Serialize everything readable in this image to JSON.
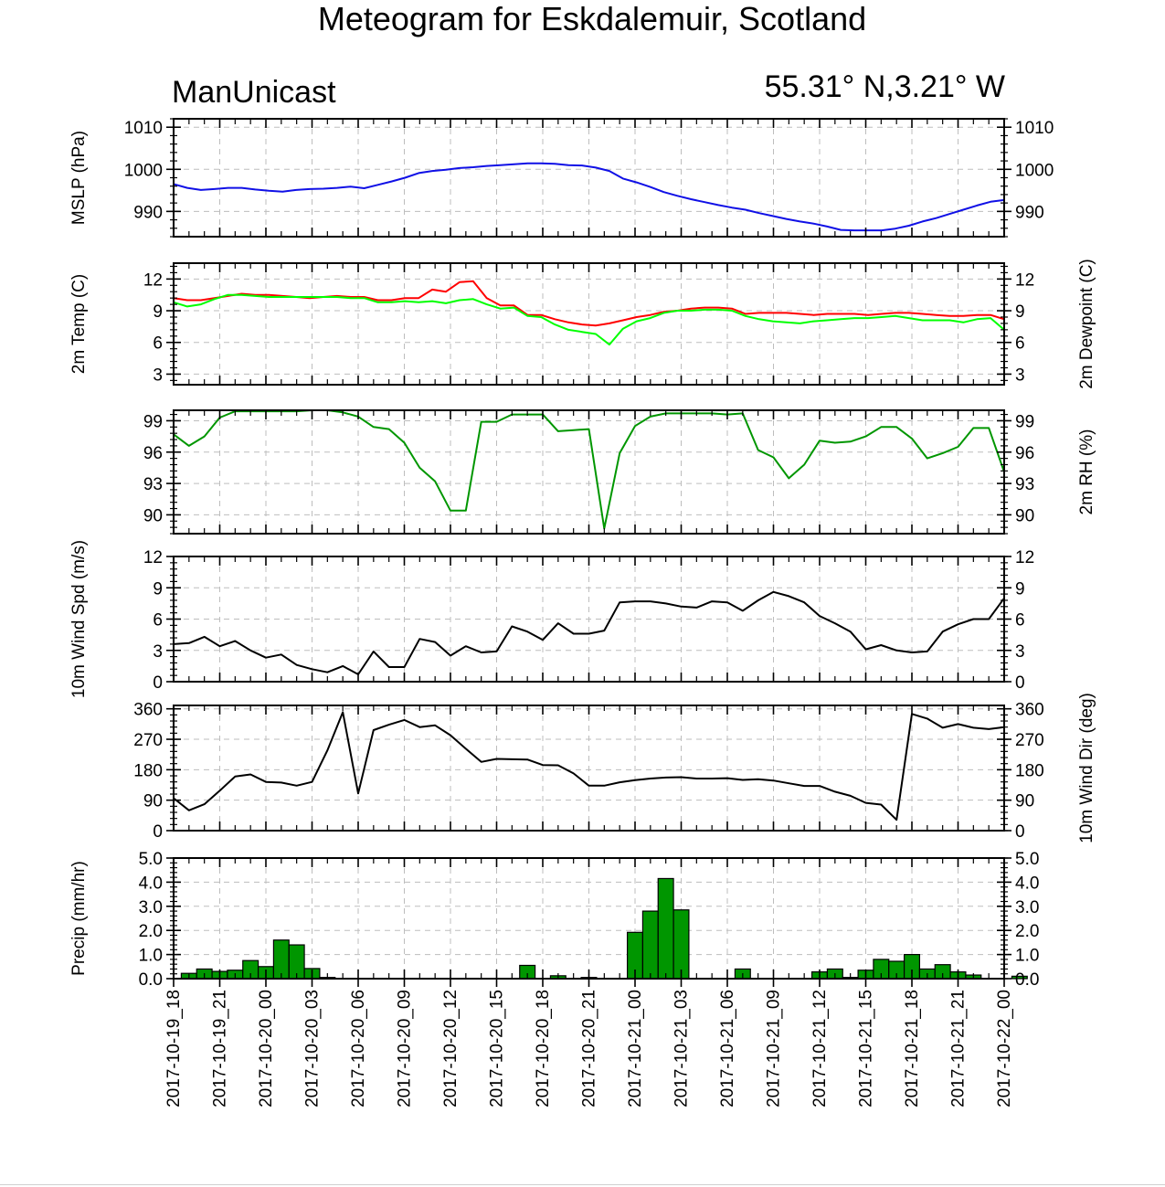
{
  "title": "Meteogram for Eskdalemuir, Scotland",
  "model_label": "ManUnicast",
  "location_label": "55.31° N,3.21° W",
  "chart_data": [
    {
      "type": "line",
      "ylabel": "MSLP (hPa)",
      "ylabel_right": "",
      "ylim": [
        984,
        1012
      ],
      "yticks": [
        990,
        1000,
        1010
      ],
      "yticklabels": [
        "990",
        "1000",
        "1010"
      ],
      "series": [
        {
          "color": "#1010e6",
          "values": [
            996.5,
            995.6,
            995.1,
            995.3,
            995.6,
            995.6,
            995.2,
            994.9,
            994.7,
            995.1,
            995.3,
            995.4,
            995.6,
            995.9,
            995.5,
            996.3,
            997.1,
            998.0,
            999.1,
            999.6,
            999.9,
            1000.3,
            1000.5,
            1000.8,
            1001.0,
            1001.2,
            1001.4,
            1001.4,
            1001.3,
            1001.0,
            1000.9,
            1000.4,
            999.6,
            997.8,
            996.9,
            995.8,
            994.6,
            993.7,
            992.9,
            992.2,
            991.5,
            990.9,
            990.4,
            989.6,
            988.9,
            988.2,
            987.6,
            987.1,
            986.4,
            985.6,
            985.5,
            985.5,
            985.5,
            985.9,
            986.6,
            987.6,
            988.4,
            989.4,
            990.4,
            991.4,
            992.3,
            992.7
          ]
        }
      ]
    },
    {
      "type": "line",
      "ylabel": "2m Temp (C)",
      "ylabel_right": "2m Dewpoint (C)",
      "ylim": [
        2,
        13.5
      ],
      "yticks": [
        3,
        6,
        9,
        12
      ],
      "yticklabels": [
        "3",
        "6",
        "9",
        "12"
      ],
      "series": [
        {
          "color": "#ff0000",
          "values": [
            10.2,
            10.0,
            10.0,
            10.2,
            10.4,
            10.6,
            10.5,
            10.5,
            10.4,
            10.3,
            10.2,
            10.3,
            10.4,
            10.3,
            10.3,
            10.0,
            10.0,
            10.2,
            10.2,
            11.0,
            10.8,
            11.7,
            11.8,
            10.2,
            9.5,
            9.5,
            8.6,
            8.6,
            8.2,
            7.9,
            7.7,
            7.6,
            7.8,
            8.1,
            8.4,
            8.6,
            8.9,
            9.0,
            9.2,
            9.3,
            9.3,
            9.2,
            8.7,
            8.8,
            8.8,
            8.8,
            8.7,
            8.6,
            8.7,
            8.7,
            8.7,
            8.6,
            8.7,
            8.8,
            8.8,
            8.7,
            8.6,
            8.5,
            8.5,
            8.6,
            8.6,
            8.2
          ]
        },
        {
          "color": "#00ff00",
          "values": [
            9.8,
            9.4,
            9.6,
            10.1,
            10.5,
            10.5,
            10.4,
            10.3,
            10.3,
            10.3,
            10.3,
            10.3,
            10.3,
            10.2,
            10.2,
            9.8,
            9.8,
            9.9,
            9.8,
            9.9,
            9.7,
            10.0,
            10.1,
            9.6,
            9.2,
            9.3,
            8.5,
            8.4,
            7.7,
            7.2,
            7.0,
            6.8,
            5.8,
            7.3,
            8.0,
            8.3,
            8.8,
            9.0,
            9.0,
            9.1,
            9.1,
            9.0,
            8.5,
            8.2,
            8.0,
            7.9,
            7.8,
            8.0,
            8.1,
            8.2,
            8.3,
            8.3,
            8.4,
            8.5,
            8.3,
            8.1,
            8.1,
            8.1,
            7.9,
            8.2,
            8.3,
            7.2
          ]
        }
      ]
    },
    {
      "type": "line",
      "ylabel": "",
      "ylabel_right": "2m RH (%)",
      "ylim": [
        88.2,
        100
      ],
      "yticks": [
        90,
        93,
        96,
        99
      ],
      "yticklabels": [
        "90",
        "93",
        "96",
        "99"
      ],
      "series": [
        {
          "color": "#009600",
          "values": [
            97.7,
            96.6,
            97.5,
            99.3,
            99.9,
            99.9,
            99.9,
            99.9,
            99.9,
            100.0,
            100.0,
            99.8,
            99.4,
            98.4,
            98.2,
            96.9,
            94.5,
            93.2,
            90.4,
            90.4,
            98.9,
            98.9,
            99.6,
            99.6,
            99.6,
            98.0,
            98.1,
            98.2,
            88.7,
            95.9,
            98.5,
            99.4,
            99.7,
            99.7,
            99.7,
            99.7,
            99.6,
            99.7,
            96.2,
            95.5,
            93.5,
            94.8,
            97.1,
            96.9,
            97.0,
            97.5,
            98.4,
            98.4,
            97.3,
            95.4,
            95.9,
            96.5,
            98.3,
            98.3,
            94.1
          ]
        }
      ]
    },
    {
      "type": "line",
      "ylabel": "10m Wind Spd (m/s)",
      "ylabel_right": "",
      "ylim": [
        0,
        12
      ],
      "yticks": [
        0,
        3,
        6,
        9,
        12
      ],
      "yticklabels": [
        "0",
        "3",
        "6",
        "9",
        "12"
      ],
      "series": [
        {
          "color": "#000000",
          "values": [
            3.6,
            3.7,
            4.3,
            3.4,
            3.9,
            3.0,
            2.3,
            2.6,
            1.6,
            1.2,
            0.9,
            1.5,
            0.7,
            2.9,
            1.4,
            1.4,
            4.1,
            3.8,
            2.5,
            3.4,
            2.8,
            2.9,
            5.3,
            4.8,
            4.0,
            5.6,
            4.6,
            4.6,
            4.9,
            7.6,
            7.7,
            7.7,
            7.5,
            7.2,
            7.1,
            7.7,
            7.6,
            6.8,
            7.8,
            8.6,
            8.2,
            7.6,
            6.3,
            5.6,
            4.8,
            3.1,
            3.5,
            3.0,
            2.8,
            2.9,
            4.8,
            5.5,
            6.0,
            6.0,
            8.0
          ]
        }
      ]
    },
    {
      "type": "line",
      "ylabel": "",
      "ylabel_right": "10m Wind Dir (deg)",
      "ylim": [
        0,
        370
      ],
      "yticks": [
        0,
        90,
        180,
        270,
        360
      ],
      "yticklabels": [
        "0",
        "90",
        "180",
        "270",
        "360"
      ],
      "series": [
        {
          "color": "#000000",
          "values": [
            96,
            60,
            78,
            118,
            160,
            166,
            144,
            142,
            133,
            144,
            237,
            350,
            110,
            297,
            313,
            327,
            306,
            311,
            282,
            242,
            203,
            212,
            211,
            210,
            194,
            193,
            169,
            133,
            133,
            143,
            149,
            154,
            157,
            158,
            154,
            154,
            155,
            150,
            152,
            148,
            140,
            132,
            132,
            115,
            103,
            82,
            77,
            32,
            345,
            331,
            304,
            315,
            304,
            300,
            306
          ]
        }
      ]
    },
    {
      "type": "bar",
      "ylabel": "Precip (mm/hr)",
      "ylabel_right": "",
      "ylim": [
        0,
        5.0
      ],
      "yticks": [
        0,
        1,
        2,
        3,
        4,
        5
      ],
      "yticklabels": [
        "0.0",
        "1.0",
        "2.0",
        "3.0",
        "4.0",
        "5.0"
      ],
      "series": [
        {
          "color": "#009600",
          "values": [
            0.22,
            0.4,
            0.3,
            0.35,
            0.75,
            0.5,
            1.6,
            1.4,
            0.42,
            0.05,
            0,
            0,
            0,
            0,
            0,
            0,
            0,
            0,
            0,
            0,
            0,
            0,
            0.55,
            0,
            0.12,
            0,
            0.05,
            0,
            0,
            1.92,
            2.8,
            4.15,
            2.85,
            0,
            0,
            0,
            0.4,
            0,
            0,
            0,
            0,
            0.28,
            0.4,
            0.05,
            0.35,
            0.8,
            0.72,
            1.0,
            0.4,
            0.58,
            0.28,
            0.15,
            0,
            0,
            0.1
          ]
        }
      ]
    }
  ],
  "time_axis": {
    "labels": [
      "2017-10-19_18",
      "2017-10-19_21",
      "2017-10-20_00",
      "2017-10-20_03",
      "2017-10-20_06",
      "2017-10-20_09",
      "2017-10-20_12",
      "2017-10-20_15",
      "2017-10-20_18",
      "2017-10-20_21",
      "2017-10-21_00",
      "2017-10-21_03",
      "2017-10-21_06",
      "2017-10-21_09",
      "2017-10-21_12",
      "2017-10-21_15",
      "2017-10-21_18",
      "2017-10-21_21",
      "2017-10-22_00"
    ]
  }
}
